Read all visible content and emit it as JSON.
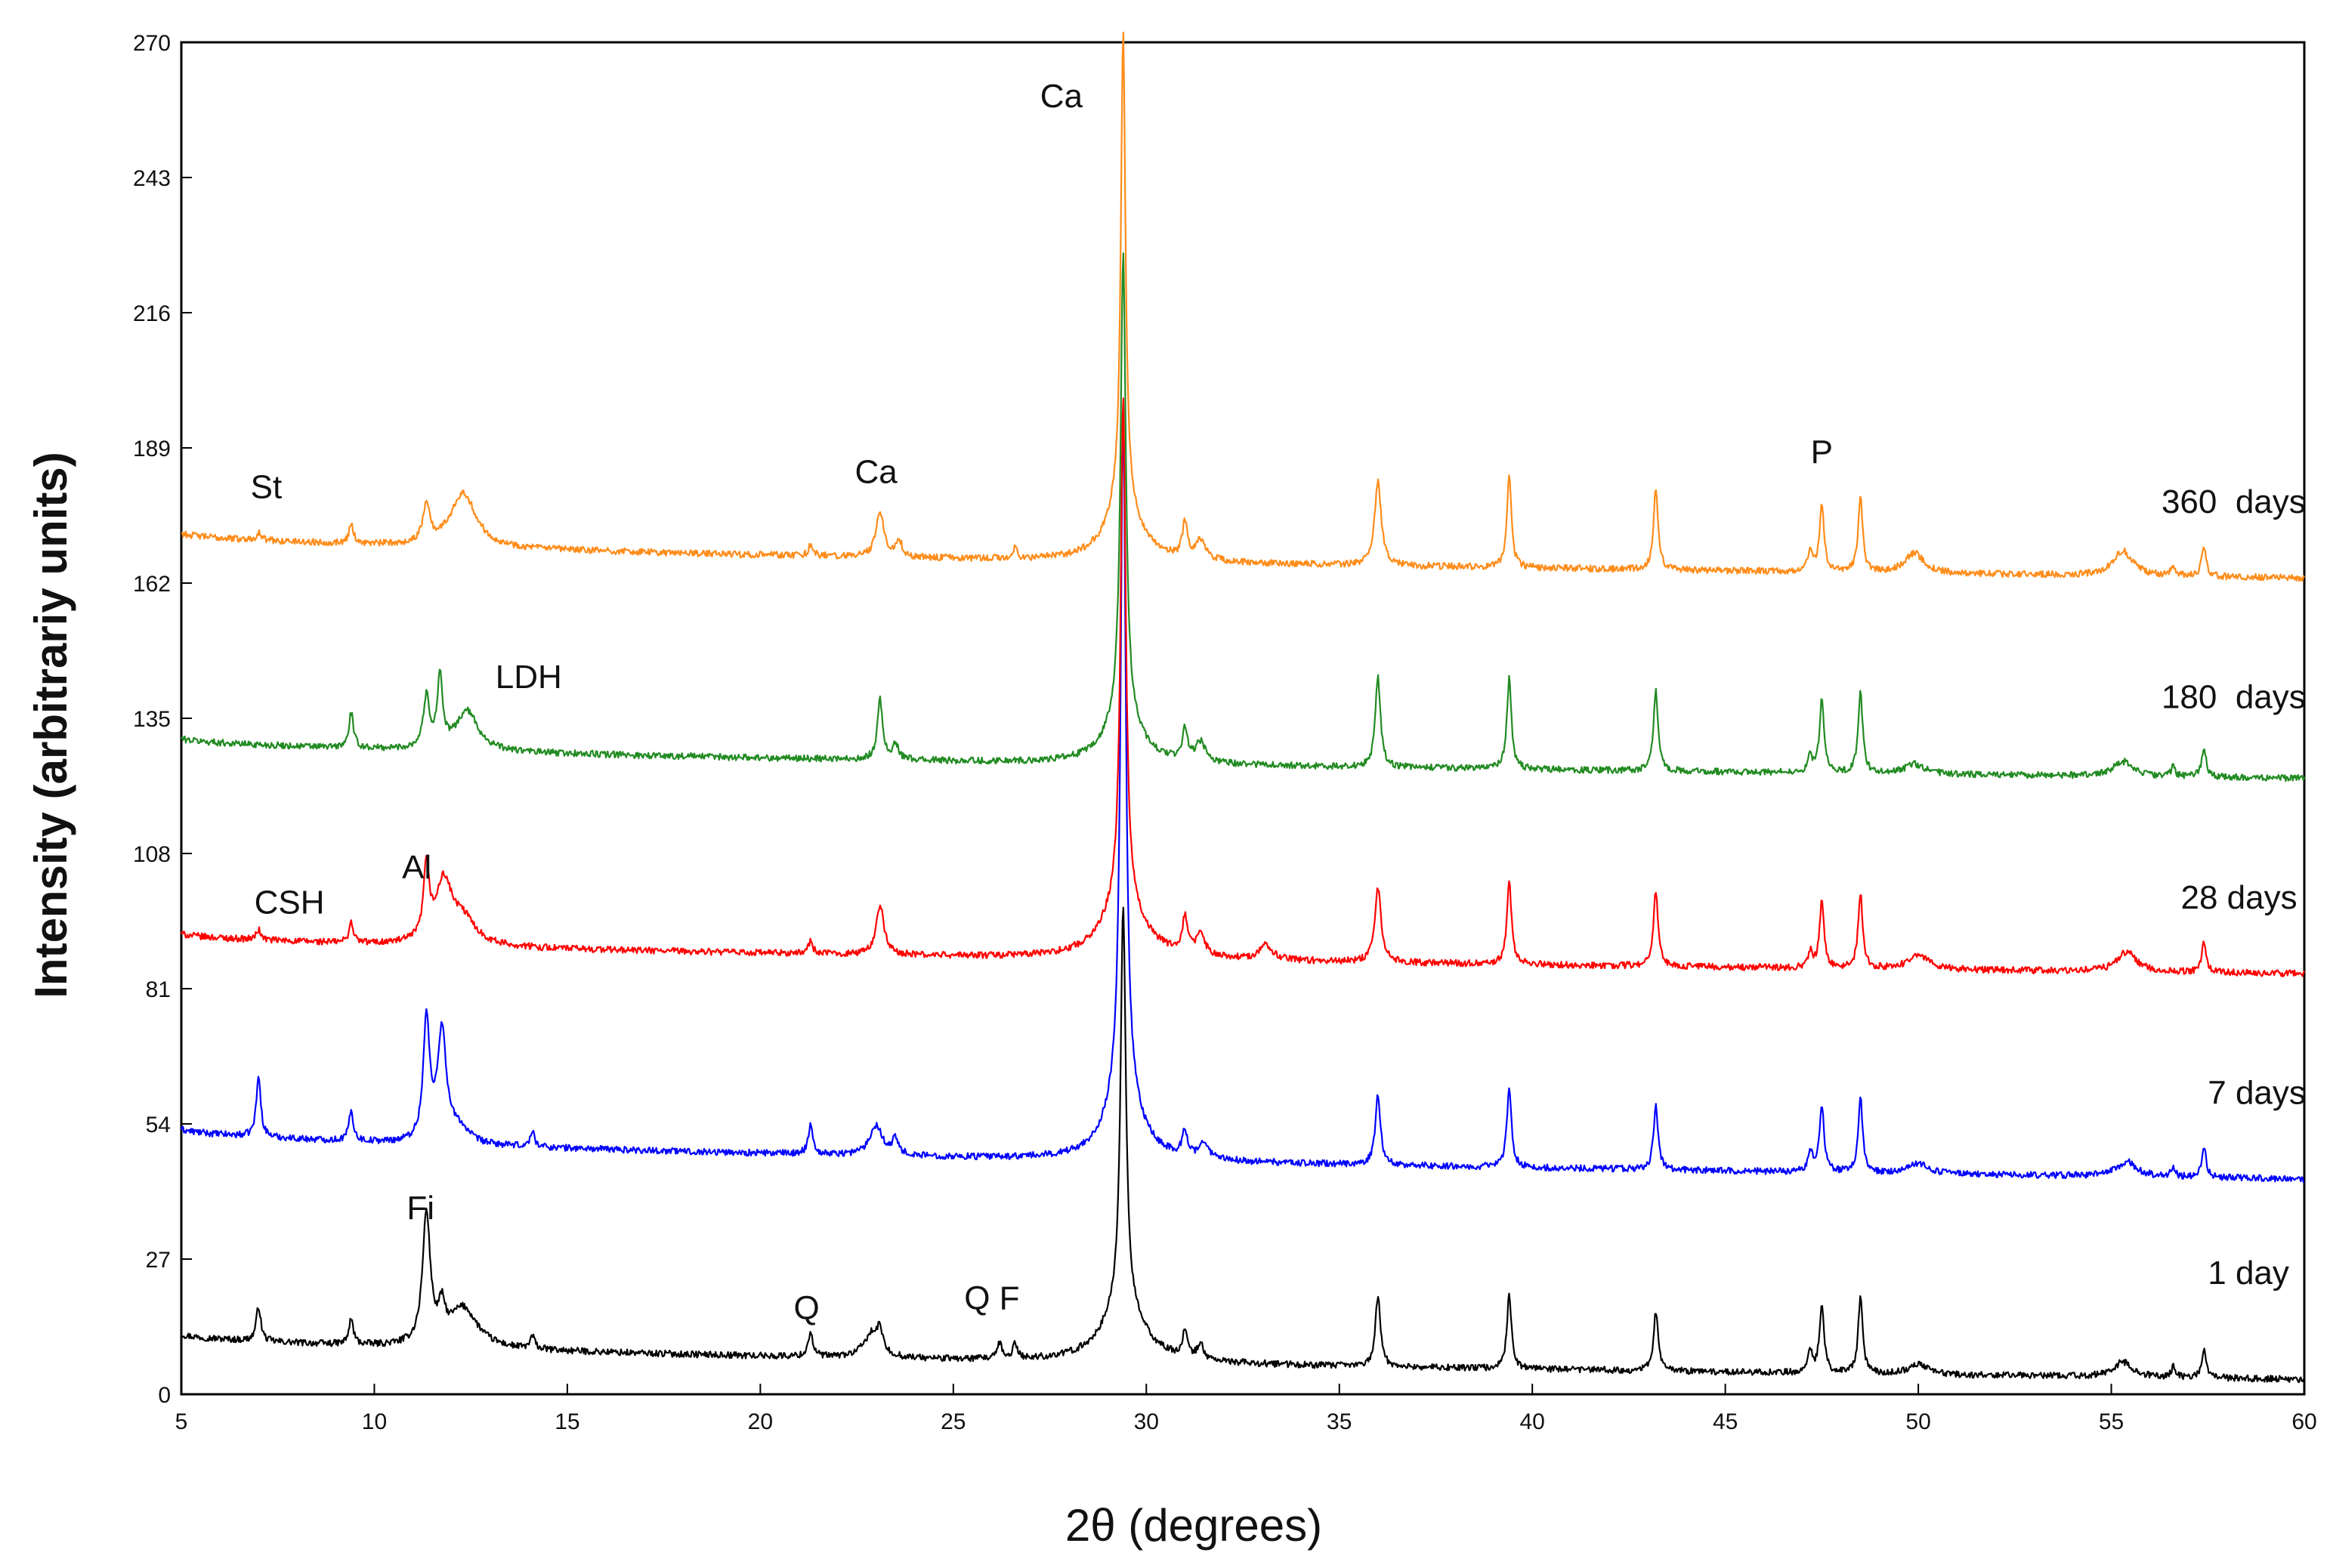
{
  "chart_data": {
    "type": "line",
    "title": "",
    "xlabel": "2θ (degrees)",
    "ylabel": "Intensity (arbitrariy units)",
    "xlim": [
      5,
      60
    ],
    "ylim": [
      0,
      270
    ],
    "xticks": [
      5,
      10,
      15,
      20,
      25,
      30,
      35,
      40,
      45,
      50,
      55,
      60
    ],
    "yticks": [
      0,
      27,
      54,
      81,
      108,
      135,
      162,
      189,
      216,
      243,
      270
    ],
    "grid": false,
    "series": [
      {
        "name": "1 day",
        "label": "1 day",
        "color": "#000000",
        "label_x": 57.5,
        "label_y": 22,
        "baseline_start": 12,
        "baseline_end": 3,
        "peaks": [
          {
            "x": 7.0,
            "h": 7,
            "w": 0.07
          },
          {
            "x": 9.4,
            "h": 5,
            "w": 0.07
          },
          {
            "x": 11.35,
            "h": 26,
            "w": 0.12
          },
          {
            "x": 11.75,
            "h": 6,
            "w": 0.1
          },
          {
            "x": 12.3,
            "h": 8,
            "w": 0.45
          },
          {
            "x": 14.1,
            "h": 2.5,
            "w": 0.07
          },
          {
            "x": 21.3,
            "h": 5,
            "w": 0.07
          },
          {
            "x": 22.9,
            "h": 5,
            "w": 0.25
          },
          {
            "x": 23.1,
            "h": 4,
            "w": 0.07
          },
          {
            "x": 26.2,
            "h": 3,
            "w": 0.07
          },
          {
            "x": 26.6,
            "h": 3,
            "w": 0.07
          },
          {
            "x": 29.4,
            "h": 80,
            "w": 0.08
          },
          {
            "x": 29.4,
            "h": 12,
            "w": 0.6
          },
          {
            "x": 31.0,
            "h": 5,
            "w": 0.08
          },
          {
            "x": 31.4,
            "h": 3,
            "w": 0.1
          },
          {
            "x": 36.0,
            "h": 14,
            "w": 0.08
          },
          {
            "x": 39.4,
            "h": 15,
            "w": 0.07
          },
          {
            "x": 43.2,
            "h": 12,
            "w": 0.07
          },
          {
            "x": 47.2,
            "h": 4,
            "w": 0.07
          },
          {
            "x": 47.5,
            "h": 14,
            "w": 0.07
          },
          {
            "x": 48.5,
            "h": 15,
            "w": 0.07
          },
          {
            "x": 50.0,
            "h": 2,
            "w": 0.3
          },
          {
            "x": 55.3,
            "h": 3,
            "w": 0.3
          },
          {
            "x": 56.6,
            "h": 2,
            "w": 0.06
          },
          {
            "x": 57.4,
            "h": 6,
            "w": 0.07
          }
        ]
      },
      {
        "name": "7 days",
        "label": "7 days",
        "color": "#0000ff",
        "label_x": 57.5,
        "label_y": 58,
        "baseline_start": 53,
        "baseline_end": 43,
        "peaks": [
          {
            "x": 7.0,
            "h": 12,
            "w": 0.07
          },
          {
            "x": 9.4,
            "h": 6,
            "w": 0.07
          },
          {
            "x": 11.35,
            "h": 24,
            "w": 0.1
          },
          {
            "x": 11.75,
            "h": 22,
            "w": 0.14
          },
          {
            "x": 12.2,
            "h": 3,
            "w": 0.3
          },
          {
            "x": 14.1,
            "h": 3,
            "w": 0.07
          },
          {
            "x": 21.3,
            "h": 6,
            "w": 0.07
          },
          {
            "x": 23.0,
            "h": 6,
            "w": 0.2
          },
          {
            "x": 23.5,
            "h": 3,
            "w": 0.1
          },
          {
            "x": 29.4,
            "h": 137,
            "w": 0.08
          },
          {
            "x": 29.4,
            "h": 14,
            "w": 0.5
          },
          {
            "x": 31.0,
            "h": 5,
            "w": 0.08
          },
          {
            "x": 31.5,
            "h": 3,
            "w": 0.15
          },
          {
            "x": 36.0,
            "h": 14,
            "w": 0.08
          },
          {
            "x": 39.4,
            "h": 16,
            "w": 0.07
          },
          {
            "x": 43.2,
            "h": 13,
            "w": 0.07
          },
          {
            "x": 47.2,
            "h": 4,
            "w": 0.07
          },
          {
            "x": 47.5,
            "h": 13,
            "w": 0.07
          },
          {
            "x": 48.5,
            "h": 15,
            "w": 0.07
          },
          {
            "x": 50.0,
            "h": 2,
            "w": 0.3
          },
          {
            "x": 55.4,
            "h": 3,
            "w": 0.3
          },
          {
            "x": 56.6,
            "h": 2,
            "w": 0.06
          },
          {
            "x": 57.4,
            "h": 6,
            "w": 0.07
          }
        ]
      },
      {
        "name": "28 days",
        "label": "28 days",
        "color": "#ff0000",
        "label_x": 56.8,
        "label_y": 97,
        "baseline_start": 92,
        "baseline_end": 84,
        "peaks": [
          {
            "x": 7.0,
            "h": 2,
            "w": 0.07
          },
          {
            "x": 9.4,
            "h": 4,
            "w": 0.07
          },
          {
            "x": 11.35,
            "h": 14,
            "w": 0.09
          },
          {
            "x": 11.8,
            "h": 12,
            "w": 0.25
          },
          {
            "x": 12.3,
            "h": 5,
            "w": 0.4
          },
          {
            "x": 21.3,
            "h": 2.5,
            "w": 0.07
          },
          {
            "x": 23.1,
            "h": 10,
            "w": 0.12
          },
          {
            "x": 29.4,
            "h": 100,
            "w": 0.08
          },
          {
            "x": 29.4,
            "h": 12,
            "w": 0.6
          },
          {
            "x": 31.0,
            "h": 7,
            "w": 0.08
          },
          {
            "x": 31.4,
            "h": 4,
            "w": 0.15
          },
          {
            "x": 33.1,
            "h": 3,
            "w": 0.2
          },
          {
            "x": 36.0,
            "h": 15,
            "w": 0.1
          },
          {
            "x": 39.4,
            "h": 17,
            "w": 0.07
          },
          {
            "x": 43.2,
            "h": 15,
            "w": 0.07
          },
          {
            "x": 47.2,
            "h": 3,
            "w": 0.07
          },
          {
            "x": 47.5,
            "h": 13,
            "w": 0.07
          },
          {
            "x": 48.5,
            "h": 15,
            "w": 0.07
          },
          {
            "x": 50.0,
            "h": 3,
            "w": 0.3
          },
          {
            "x": 55.4,
            "h": 4,
            "w": 0.3
          },
          {
            "x": 57.4,
            "h": 6,
            "w": 0.07
          }
        ]
      },
      {
        "name": "180 days",
        "label": "180  days",
        "color": "#228b22",
        "label_x": 56.3,
        "label_y": 137,
        "baseline_start": 131,
        "baseline_end": 123,
        "peaks": [
          {
            "x": 9.4,
            "h": 7,
            "w": 0.07
          },
          {
            "x": 11.35,
            "h": 10,
            "w": 0.1
          },
          {
            "x": 11.7,
            "h": 14,
            "w": 0.08
          },
          {
            "x": 12.4,
            "h": 8,
            "w": 0.35
          },
          {
            "x": 23.1,
            "h": 12,
            "w": 0.08
          },
          {
            "x": 23.5,
            "h": 3,
            "w": 0.1
          },
          {
            "x": 29.4,
            "h": 92,
            "w": 0.08
          },
          {
            "x": 29.4,
            "h": 10,
            "w": 0.5
          },
          {
            "x": 31.0,
            "h": 6,
            "w": 0.08
          },
          {
            "x": 31.4,
            "h": 4,
            "w": 0.15
          },
          {
            "x": 36.0,
            "h": 18,
            "w": 0.08
          },
          {
            "x": 39.4,
            "h": 18,
            "w": 0.07
          },
          {
            "x": 43.2,
            "h": 16,
            "w": 0.07
          },
          {
            "x": 47.2,
            "h": 3,
            "w": 0.07
          },
          {
            "x": 47.5,
            "h": 15,
            "w": 0.07
          },
          {
            "x": 48.5,
            "h": 16,
            "w": 0.07
          },
          {
            "x": 49.9,
            "h": 2,
            "w": 0.3
          },
          {
            "x": 55.3,
            "h": 3,
            "w": 0.3
          },
          {
            "x": 56.6,
            "h": 2,
            "w": 0.06
          },
          {
            "x": 57.4,
            "h": 6,
            "w": 0.07
          }
        ]
      },
      {
        "name": "360 days",
        "label": "360  days",
        "color": "#ff8c1a",
        "label_x": 56.3,
        "label_y": 176,
        "baseline_start": 172,
        "baseline_end": 163,
        "peaks": [
          {
            "x": 7.0,
            "h": 1.5,
            "w": 0.07
          },
          {
            "x": 9.4,
            "h": 4,
            "w": 0.07
          },
          {
            "x": 11.35,
            "h": 8,
            "w": 0.1
          },
          {
            "x": 12.3,
            "h": 11,
            "w": 0.4
          },
          {
            "x": 21.3,
            "h": 2,
            "w": 0.07
          },
          {
            "x": 23.1,
            "h": 9,
            "w": 0.12
          },
          {
            "x": 23.6,
            "h": 3,
            "w": 0.1
          },
          {
            "x": 26.6,
            "h": 2,
            "w": 0.06
          },
          {
            "x": 29.4,
            "h": 94,
            "w": 0.07
          },
          {
            "x": 29.4,
            "h": 12,
            "w": 0.5
          },
          {
            "x": 31.0,
            "h": 7,
            "w": 0.08
          },
          {
            "x": 31.4,
            "h": 4,
            "w": 0.15
          },
          {
            "x": 36.0,
            "h": 17,
            "w": 0.1
          },
          {
            "x": 39.4,
            "h": 18,
            "w": 0.07
          },
          {
            "x": 43.2,
            "h": 16,
            "w": 0.07
          },
          {
            "x": 47.2,
            "h": 4,
            "w": 0.07
          },
          {
            "x": 47.5,
            "h": 13,
            "w": 0.07
          },
          {
            "x": 48.5,
            "h": 15,
            "w": 0.07
          },
          {
            "x": 49.9,
            "h": 4,
            "w": 0.3
          },
          {
            "x": 55.3,
            "h": 5,
            "w": 0.3
          },
          {
            "x": 56.6,
            "h": 2,
            "w": 0.06
          },
          {
            "x": 57.4,
            "h": 6,
            "w": 0.07
          }
        ]
      }
    ],
    "annotations": [
      {
        "name": "annotation-fi",
        "text": "Fi",
        "x": 11.2,
        "y": 35
      },
      {
        "name": "annotation-q-21",
        "text": "Q",
        "x": 21.2,
        "y": 15
      },
      {
        "name": "annotation-q-f",
        "text": "Q  F",
        "x": 26.0,
        "y": 17
      },
      {
        "name": "annotation-csh",
        "text": "CSH",
        "x": 7.8,
        "y": 96
      },
      {
        "name": "annotation-al",
        "text": "Al",
        "x": 11.1,
        "y": 103
      },
      {
        "name": "annotation-ldh",
        "text": "LDH",
        "x": 14.0,
        "y": 141
      },
      {
        "name": "annotation-st",
        "text": "St",
        "x": 7.2,
        "y": 179
      },
      {
        "name": "annotation-ca-23",
        "text": "Ca",
        "x": 23.0,
        "y": 182
      },
      {
        "name": "annotation-ca-29",
        "text": "Ca",
        "x": 27.8,
        "y": 257
      },
      {
        "name": "annotation-p",
        "text": "P",
        "x": 47.5,
        "y": 186
      }
    ]
  }
}
